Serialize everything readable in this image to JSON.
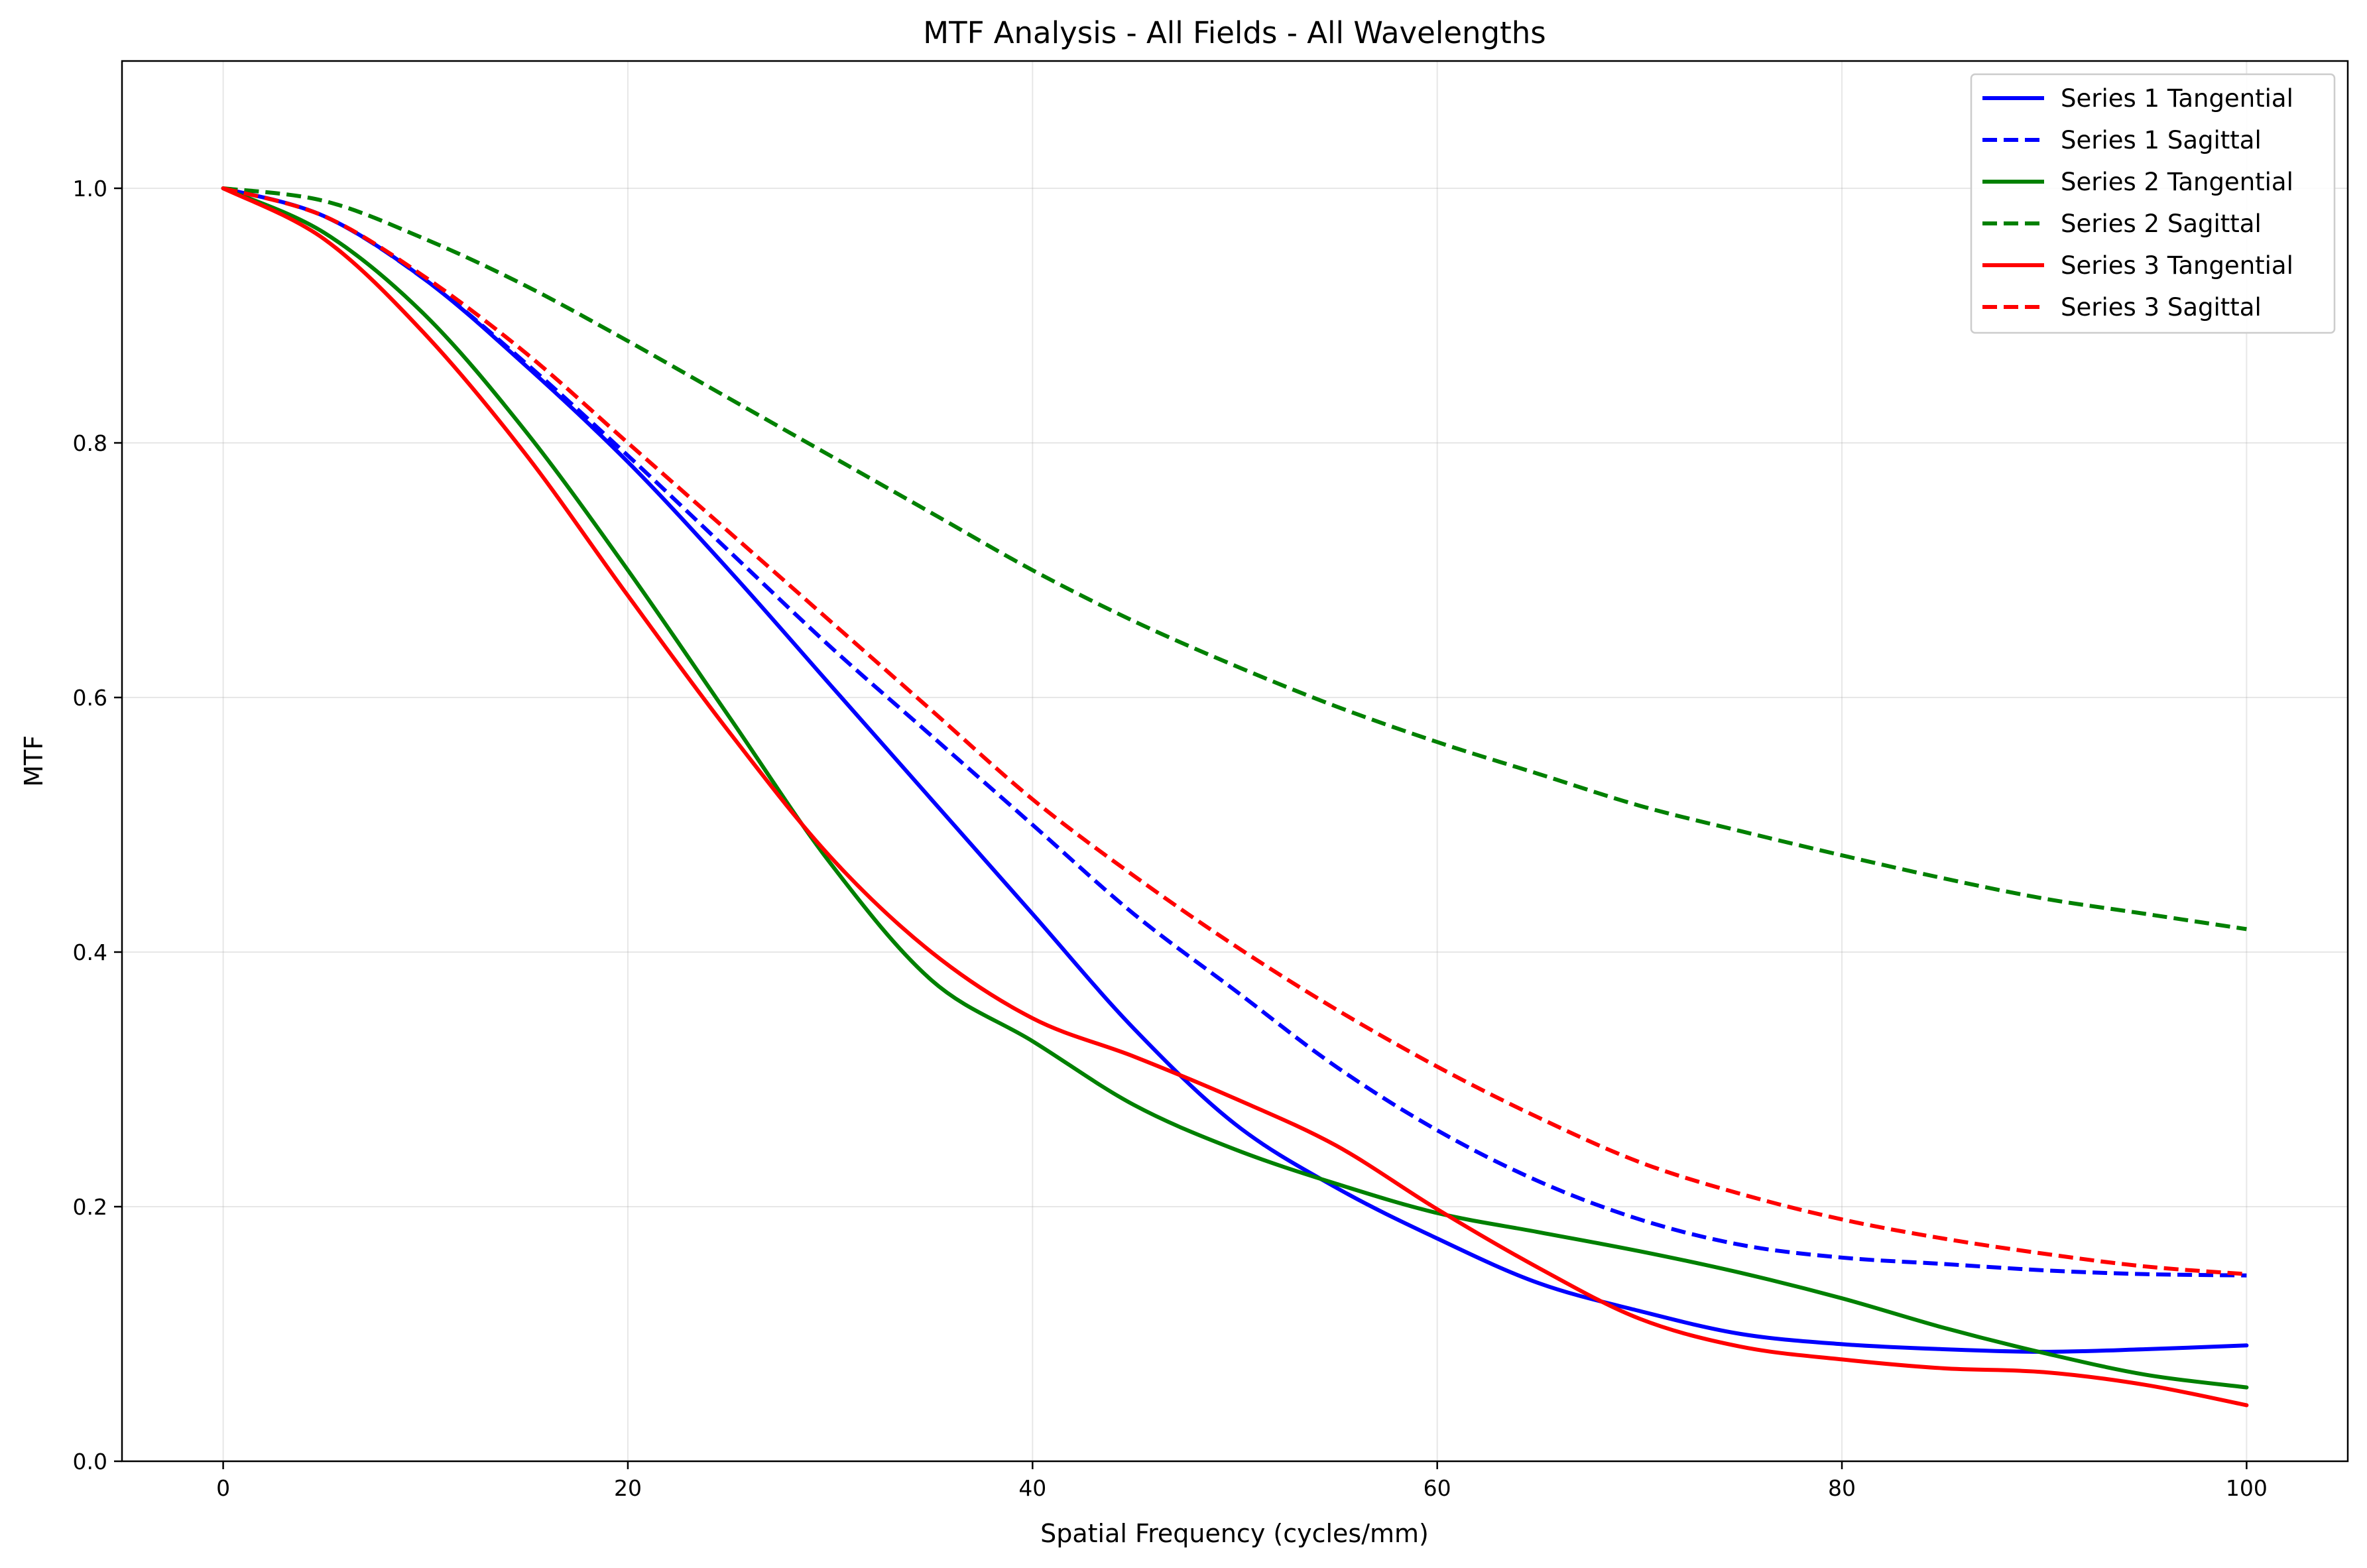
{
  "chart_data": {
    "type": "line",
    "title": "MTF Analysis - All Fields - All Wavelengths",
    "xlabel": "Spatial Frequency (cycles/mm)",
    "ylabel": "MTF",
    "xlim": [
      -5,
      105
    ],
    "ylim": [
      0,
      1.1
    ],
    "xticks": [
      0,
      20,
      40,
      60,
      80,
      100
    ],
    "xtick_labels": [
      "0",
      "20",
      "40",
      "60",
      "80",
      "100"
    ],
    "yticks": [
      0.0,
      0.2,
      0.4,
      0.6,
      0.8,
      1.0
    ],
    "ytick_labels": [
      "0.0",
      "0.2",
      "0.4",
      "0.6",
      "0.8",
      "1.0"
    ],
    "grid": true,
    "legend_position": "top-right",
    "x": [
      0,
      5,
      10,
      15,
      20,
      25,
      30,
      35,
      40,
      45,
      50,
      55,
      60,
      65,
      70,
      75,
      80,
      85,
      90,
      95,
      100
    ],
    "series": [
      {
        "name": "Series 1 Tangential",
        "color": "#0000ff",
        "dash": "solid",
        "values": [
          1.0,
          0.978,
          0.928,
          0.86,
          0.785,
          0.7,
          0.61,
          0.52,
          0.43,
          0.34,
          0.265,
          0.215,
          0.175,
          0.14,
          0.118,
          0.1,
          0.092,
          0.088,
          0.086,
          0.088,
          0.091
        ]
      },
      {
        "name": "Series 1 Sagittal",
        "color": "#0000ff",
        "dash": "dashed",
        "values": [
          1.0,
          0.978,
          0.928,
          0.862,
          0.79,
          0.715,
          0.64,
          0.57,
          0.5,
          0.43,
          0.37,
          0.31,
          0.26,
          0.22,
          0.19,
          0.17,
          0.16,
          0.155,
          0.15,
          0.147,
          0.146
        ]
      },
      {
        "name": "Series 2 Tangential",
        "color": "#008000",
        "dash": "solid",
        "values": [
          1.0,
          0.965,
          0.9,
          0.808,
          0.7,
          0.585,
          0.47,
          0.378,
          0.33,
          0.28,
          0.245,
          0.218,
          0.195,
          0.18,
          0.165,
          0.148,
          0.128,
          0.105,
          0.085,
          0.068,
          0.058
        ]
      },
      {
        "name": "Series 2 Sagittal",
        "color": "#008000",
        "dash": "dashed",
        "values": [
          1.0,
          0.99,
          0.96,
          0.923,
          0.88,
          0.835,
          0.79,
          0.745,
          0.7,
          0.66,
          0.625,
          0.593,
          0.565,
          0.54,
          0.515,
          0.495,
          0.476,
          0.458,
          0.442,
          0.43,
          0.418
        ]
      },
      {
        "name": "Series 3 Tangential",
        "color": "#ff0000",
        "dash": "solid",
        "values": [
          1.0,
          0.96,
          0.885,
          0.79,
          0.68,
          0.573,
          0.475,
          0.4,
          0.348,
          0.318,
          0.285,
          0.248,
          0.198,
          0.152,
          0.112,
          0.09,
          0.08,
          0.073,
          0.07,
          0.06,
          0.044
        ]
      },
      {
        "name": "Series 3 Sagittal",
        "color": "#ff0000",
        "dash": "dashed",
        "values": [
          1.0,
          0.978,
          0.93,
          0.87,
          0.8,
          0.73,
          0.66,
          0.59,
          0.52,
          0.46,
          0.405,
          0.355,
          0.31,
          0.27,
          0.235,
          0.21,
          0.19,
          0.175,
          0.163,
          0.153,
          0.147
        ]
      }
    ]
  }
}
